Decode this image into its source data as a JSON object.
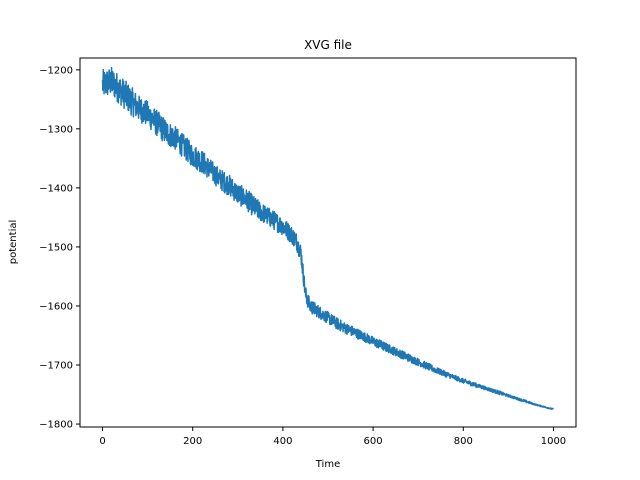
{
  "chart_data": {
    "type": "line",
    "title": "XVG file",
    "xlabel": "Time",
    "ylabel": "potential",
    "xlim": [
      -50,
      1050
    ],
    "ylim": [
      -1805,
      -1180
    ],
    "xticks": [
      0,
      200,
      400,
      600,
      800,
      1000
    ],
    "yticks": [
      -1800,
      -1700,
      -1600,
      -1500,
      -1400,
      -1300,
      -1200
    ],
    "grid": false,
    "series": [
      {
        "color": "#1f77b4",
        "x": [
          0,
          20,
          40,
          60,
          80,
          100,
          120,
          140,
          160,
          180,
          200,
          220,
          240,
          260,
          280,
          300,
          320,
          340,
          360,
          380,
          400,
          420,
          430,
          440,
          445,
          450,
          460,
          480,
          500,
          520,
          540,
          560,
          580,
          600,
          620,
          640,
          660,
          680,
          700,
          720,
          740,
          760,
          780,
          800,
          820,
          840,
          860,
          880,
          900,
          920,
          940,
          960,
          980,
          1000
        ],
        "y": [
          -1225,
          -1220,
          -1235,
          -1250,
          -1265,
          -1275,
          -1290,
          -1305,
          -1315,
          -1330,
          -1345,
          -1355,
          -1370,
          -1385,
          -1395,
          -1410,
          -1420,
          -1435,
          -1445,
          -1455,
          -1465,
          -1480,
          -1490,
          -1510,
          -1545,
          -1580,
          -1600,
          -1610,
          -1620,
          -1630,
          -1638,
          -1645,
          -1652,
          -1660,
          -1667,
          -1674,
          -1681,
          -1688,
          -1695,
          -1702,
          -1709,
          -1715,
          -1721,
          -1727,
          -1732,
          -1737,
          -1742,
          -1747,
          -1752,
          -1757,
          -1762,
          -1767,
          -1771,
          -1775
        ],
        "noise_amplitude": [
          25,
          25,
          25,
          25,
          22,
          22,
          22,
          22,
          20,
          20,
          20,
          20,
          18,
          18,
          18,
          18,
          18,
          18,
          16,
          16,
          16,
          15,
          15,
          15,
          14,
          14,
          12,
          11,
          10,
          10,
          9,
          9,
          8,
          8,
          8,
          7,
          7,
          7,
          6,
          6,
          5,
          5,
          4,
          4,
          4,
          3,
          3,
          3,
          2,
          2,
          2,
          1,
          1,
          1
        ]
      }
    ]
  }
}
